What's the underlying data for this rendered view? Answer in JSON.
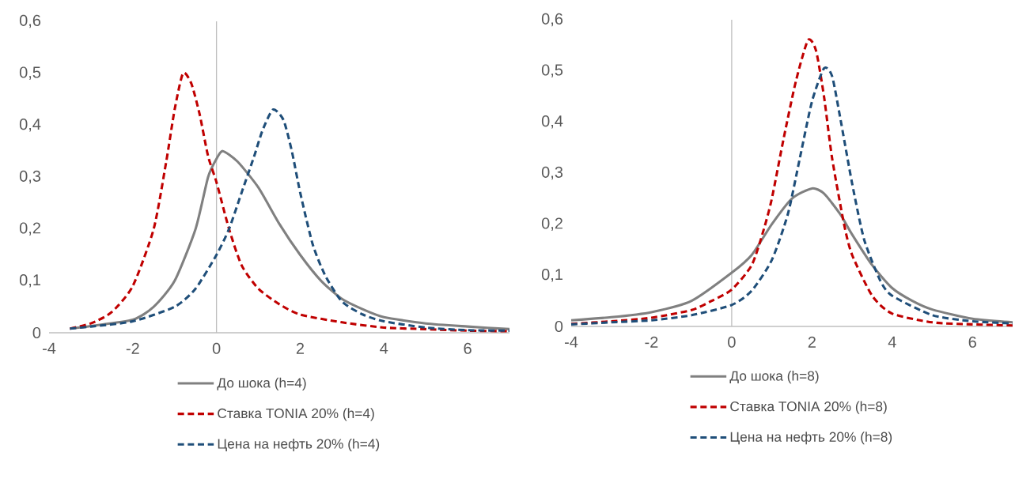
{
  "chart_data": [
    {
      "type": "line",
      "xlim": [
        -4,
        7
      ],
      "ylim": [
        0,
        0.6
      ],
      "xticks": [
        -4,
        -2,
        0,
        2,
        4,
        6
      ],
      "yticks": [
        0,
        {
          "value": 0.1,
          "label": "0,1"
        },
        {
          "value": 0.2,
          "label": "0,2"
        },
        {
          "value": 0.3,
          "label": "0,3"
        },
        {
          "value": 0.4,
          "label": "0,4"
        },
        {
          "value": 0.5,
          "label": "0,5"
        },
        {
          "value": 0.6,
          "label": "0,6"
        }
      ],
      "grid": false,
      "legend": "bottom",
      "marker": "none",
      "ref_lines": [
        {
          "axis": "x",
          "value": 0,
          "color": "#bfbfbf",
          "line_style": "solid"
        }
      ],
      "series": [
        {
          "name": "До шока (h=4)",
          "color": "#808080",
          "line_style": "solid",
          "x": [
            -3.5,
            -3,
            -2,
            -1.5,
            -1,
            -0.5,
            -0.2,
            0,
            0.15,
            0.5,
            1,
            1.5,
            2,
            2.5,
            3,
            3.5,
            4,
            5,
            6,
            7
          ],
          "values": [
            0.008,
            0.013,
            0.025,
            0.05,
            0.1,
            0.2,
            0.3,
            0.335,
            0.35,
            0.33,
            0.28,
            0.21,
            0.15,
            0.1,
            0.065,
            0.045,
            0.03,
            0.018,
            0.012,
            0.007
          ]
        },
        {
          "name": "Ставка TONIA  20% (h=4)",
          "color": "#c00000",
          "line_style": "dashed",
          "x": [
            -3.5,
            -3,
            -2.5,
            -2,
            -1.5,
            -1.2,
            -1,
            -0.8,
            -0.6,
            -0.4,
            -0.2,
            0,
            0.3,
            0.6,
            1,
            1.5,
            2,
            3,
            4,
            5,
            6,
            7
          ],
          "values": [
            0.008,
            0.018,
            0.04,
            0.09,
            0.2,
            0.33,
            0.43,
            0.5,
            0.48,
            0.42,
            0.34,
            0.29,
            0.2,
            0.13,
            0.085,
            0.055,
            0.035,
            0.02,
            0.01,
            0.007,
            0.004,
            0.003
          ]
        },
        {
          "name": "Цена на нефть 20% (h=4)",
          "color": "#1f4e79",
          "line_style": "dashed",
          "x": [
            -3.5,
            -3,
            -2,
            -1,
            -0.5,
            0,
            0.3,
            0.6,
            0.9,
            1.1,
            1.35,
            1.6,
            1.8,
            2,
            2.3,
            2.6,
            3,
            3.5,
            4,
            5,
            6,
            7
          ],
          "values": [
            0.008,
            0.012,
            0.022,
            0.05,
            0.085,
            0.15,
            0.2,
            0.27,
            0.34,
            0.39,
            0.43,
            0.41,
            0.35,
            0.27,
            0.17,
            0.11,
            0.06,
            0.035,
            0.022,
            0.01,
            0.005,
            0.004
          ]
        }
      ]
    },
    {
      "type": "line",
      "xlim": [
        -4,
        7
      ],
      "ylim": [
        0,
        0.6
      ],
      "xticks": [
        -4,
        -2,
        0,
        2,
        4,
        6
      ],
      "yticks": [
        0,
        {
          "value": 0.1,
          "label": "0,1"
        },
        {
          "value": 0.2,
          "label": "0,2"
        },
        {
          "value": 0.3,
          "label": "0,3"
        },
        {
          "value": 0.4,
          "label": "0,4"
        },
        {
          "value": 0.5,
          "label": "0,5"
        },
        {
          "value": 0.6,
          "label": "0,6"
        }
      ],
      "grid": false,
      "legend": "bottom",
      "marker": "none",
      "ref_lines": [
        {
          "axis": "x",
          "value": 0,
          "color": "#bfbfbf",
          "line_style": "solid"
        }
      ],
      "series": [
        {
          "name": "До шока (h=8)",
          "color": "#808080",
          "line_style": "solid",
          "x": [
            -4,
            -3,
            -2,
            -1,
            0,
            0.5,
            1,
            1.5,
            2,
            2.3,
            2.7,
            3,
            3.5,
            4,
            4.5,
            5,
            6,
            7
          ],
          "values": [
            0.012,
            0.018,
            0.028,
            0.05,
            0.105,
            0.14,
            0.2,
            0.25,
            0.27,
            0.26,
            0.22,
            0.18,
            0.12,
            0.075,
            0.05,
            0.033,
            0.015,
            0.008
          ]
        },
        {
          "name": "Ставка TONIA  20% (h=8)",
          "color": "#c00000",
          "line_style": "dashed",
          "x": [
            -4,
            -3,
            -2,
            -1,
            -0.5,
            0,
            0.5,
            0.8,
            1,
            1.3,
            1.6,
            1.9,
            2.1,
            2.3,
            2.5,
            2.8,
            3,
            3.5,
            4,
            5,
            6,
            7
          ],
          "values": [
            0.005,
            0.01,
            0.017,
            0.032,
            0.05,
            0.072,
            0.12,
            0.19,
            0.25,
            0.37,
            0.48,
            0.56,
            0.54,
            0.45,
            0.33,
            0.2,
            0.14,
            0.06,
            0.025,
            0.008,
            0.004,
            0.002
          ]
        },
        {
          "name": "Цена на нефть 20% (h=8)",
          "color": "#1f4e79",
          "line_style": "dashed",
          "x": [
            -4,
            -3,
            -2,
            -1,
            0,
            0.5,
            1,
            1.4,
            1.7,
            2,
            2.3,
            2.5,
            2.7,
            3,
            3.3,
            3.7,
            4,
            5,
            6,
            7
          ],
          "values": [
            0.004,
            0.008,
            0.012,
            0.022,
            0.042,
            0.07,
            0.13,
            0.22,
            0.33,
            0.44,
            0.505,
            0.49,
            0.41,
            0.28,
            0.17,
            0.09,
            0.06,
            0.022,
            0.01,
            0.006
          ]
        }
      ]
    }
  ]
}
